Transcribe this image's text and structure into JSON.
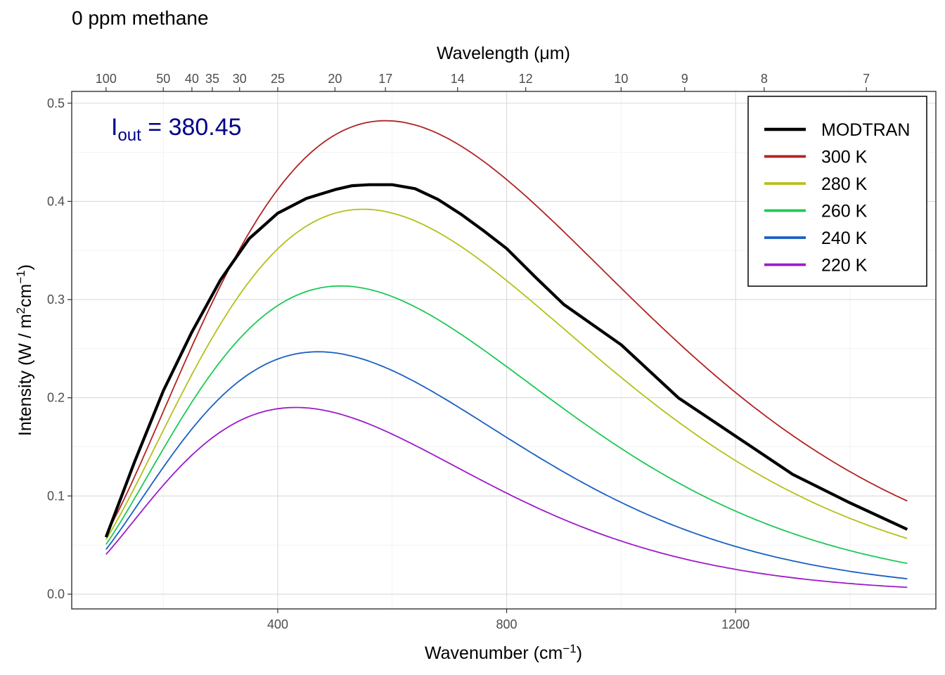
{
  "chart_data": {
    "type": "line",
    "title": "0 ppm methane",
    "xlabel": "Wavenumber (cm",
    "xlabel_sup": "−1",
    "xlabel_close": ")",
    "ylabel_pre": "Intensity (W / m",
    "ylabel_sup1": "2",
    "ylabel_mid": "cm",
    "ylabel_sup2": "−1",
    "ylabel_close": ")",
    "top_axis_label": "Wavelength (μm)",
    "xlim": [
      40,
      1550
    ],
    "ylim": [
      -0.015,
      0.512
    ],
    "x_ticks": [
      400,
      800,
      1200
    ],
    "x_tick_labels": [
      "400",
      "800",
      "1200"
    ],
    "y_ticks": [
      0.0,
      0.1,
      0.2,
      0.3,
      0.4,
      0.5
    ],
    "y_tick_labels": [
      "0.0",
      "0.1",
      "0.2",
      "0.3",
      "0.4",
      "0.5"
    ],
    "top_ticks_um": [
      100,
      50,
      40,
      35,
      30,
      25,
      20,
      17,
      14,
      12,
      10,
      9,
      8,
      7
    ],
    "top_tick_labels": [
      "100",
      "50",
      "40",
      "35",
      "30",
      "25",
      "20",
      "17",
      "14",
      "12",
      "10",
      "9",
      "8",
      "7"
    ],
    "annotation": {
      "symbol": "I",
      "subscript": "out",
      "operator": " = ",
      "value": "380.45",
      "color": "#00008B"
    },
    "legend": {
      "position": "top-right"
    },
    "series": [
      {
        "name": "MODTRAN",
        "color": "#000000",
        "kind": "modtran",
        "x": [
          100,
          150,
          200,
          250,
          300,
          350,
          400,
          450,
          500,
          530,
          560,
          600,
          640,
          680,
          720,
          760,
          800,
          850,
          900,
          1000,
          1100,
          1200,
          1300,
          1400,
          1500
        ],
        "y": [
          0.058,
          0.135,
          0.207,
          0.267,
          0.32,
          0.362,
          0.388,
          0.403,
          0.412,
          0.416,
          0.417,
          0.417,
          0.413,
          0.402,
          0.387,
          0.37,
          0.352,
          0.323,
          0.295,
          0.254,
          0.2,
          0.161,
          0.122,
          0.093,
          0.066
        ]
      },
      {
        "name": "300 K",
        "color": "#B22222",
        "temperature": 300
      },
      {
        "name": "280 K",
        "color": "#B5C01A",
        "temperature": 280
      },
      {
        "name": "260 K",
        "color": "#1CC956",
        "temperature": 260
      },
      {
        "name": "240 K",
        "color": "#1A5FC4",
        "temperature": 240
      },
      {
        "name": "220 K",
        "color": "#9E1BC9",
        "temperature": 220
      }
    ],
    "planck_x_range": [
      100,
      1500
    ]
  }
}
